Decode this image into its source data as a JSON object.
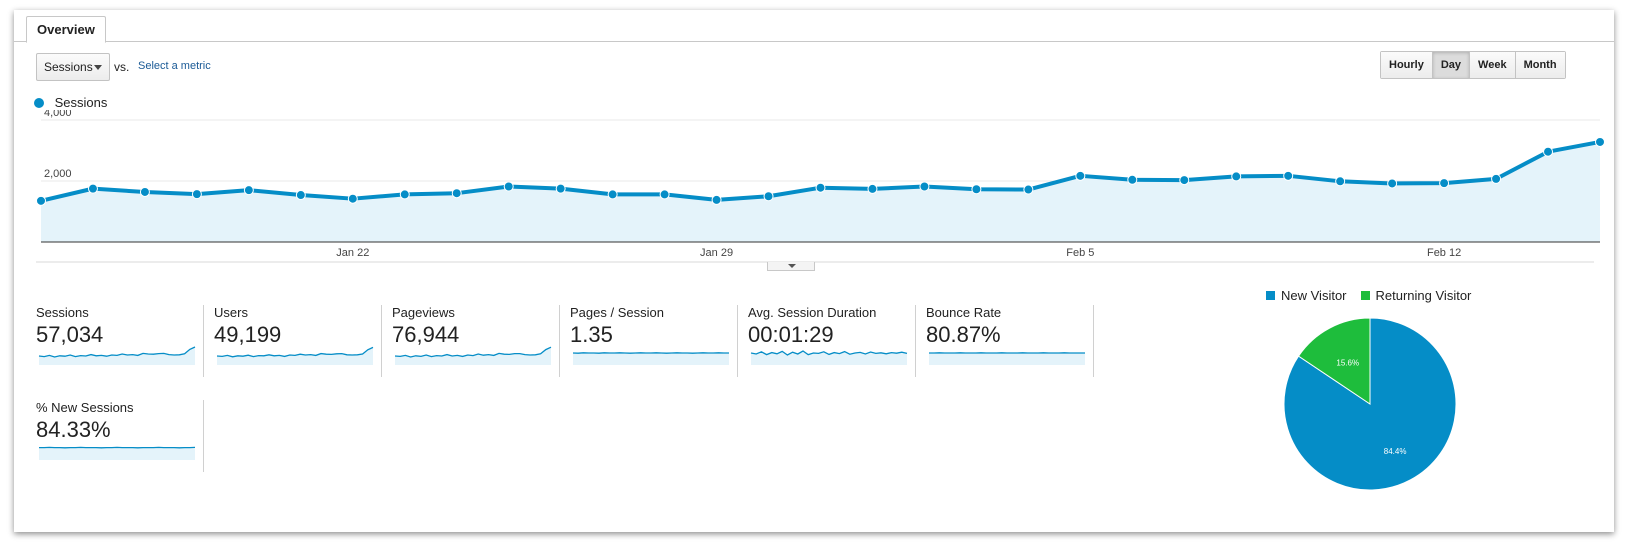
{
  "tab": {
    "label": "Overview"
  },
  "toolbar": {
    "metric_select": "Sessions",
    "vs_label": "vs.",
    "select_metric_link": "Select a metric",
    "granularity": [
      "Hourly",
      "Day",
      "Week",
      "Month"
    ],
    "granularity_active": "Day"
  },
  "chart_data": {
    "type": "area",
    "series": [
      {
        "name": "Sessions",
        "color": "#058dc7",
        "values": [
          1350,
          1750,
          1640,
          1570,
          1700,
          1540,
          1420,
          1560,
          1600,
          1820,
          1750,
          1560,
          1560,
          1380,
          1500,
          1780,
          1740,
          1820,
          1730,
          1720,
          2170,
          2040,
          2030,
          2150,
          2170,
          1990,
          1920,
          1930,
          2070,
          2960,
          3280
        ]
      }
    ],
    "x_tick_labels": [
      "Jan 22",
      "Jan 29",
      "Feb 5",
      "Feb 12"
    ],
    "x_tick_indices": [
      6,
      13,
      20,
      27
    ],
    "y_tick_labels": [
      "4,000",
      "2,000"
    ],
    "y_ticks": [
      4000,
      2000
    ],
    "ylim": [
      0,
      4000
    ]
  },
  "metrics": [
    {
      "label": "Sessions",
      "value": "57,034",
      "spark": [
        0.45,
        0.42,
        0.48,
        0.4,
        0.46,
        0.44,
        0.5,
        0.42,
        0.47,
        0.45,
        0.52,
        0.46,
        0.48,
        0.44,
        0.5,
        0.48,
        0.55,
        0.5,
        0.52,
        0.48,
        0.58,
        0.55,
        0.54,
        0.57,
        0.58,
        0.52,
        0.5,
        0.51,
        0.56,
        0.78,
        0.9
      ]
    },
    {
      "label": "Users",
      "value": "49,199",
      "spark": [
        0.45,
        0.43,
        0.48,
        0.41,
        0.46,
        0.44,
        0.49,
        0.42,
        0.47,
        0.46,
        0.51,
        0.46,
        0.48,
        0.43,
        0.5,
        0.48,
        0.54,
        0.5,
        0.52,
        0.48,
        0.57,
        0.54,
        0.53,
        0.56,
        0.57,
        0.51,
        0.5,
        0.51,
        0.55,
        0.76,
        0.88
      ]
    },
    {
      "label": "Pageviews",
      "value": "76,944",
      "spark": [
        0.45,
        0.43,
        0.48,
        0.4,
        0.46,
        0.43,
        0.5,
        0.42,
        0.47,
        0.45,
        0.52,
        0.45,
        0.48,
        0.43,
        0.5,
        0.47,
        0.55,
        0.49,
        0.52,
        0.48,
        0.58,
        0.54,
        0.53,
        0.57,
        0.57,
        0.52,
        0.5,
        0.51,
        0.56,
        0.77,
        0.89
      ]
    },
    {
      "label": "Pages / Session",
      "value": "1.35",
      "spark": [
        0.6,
        0.59,
        0.61,
        0.6,
        0.6,
        0.59,
        0.61,
        0.6,
        0.6,
        0.61,
        0.6,
        0.59,
        0.6,
        0.61,
        0.6,
        0.6,
        0.61,
        0.6,
        0.59,
        0.6,
        0.61,
        0.6,
        0.6,
        0.59,
        0.6,
        0.61,
        0.6,
        0.6,
        0.61,
        0.6,
        0.6
      ]
    },
    {
      "label": "Avg. Session Duration",
      "value": "00:01:29",
      "spark": [
        0.6,
        0.55,
        0.66,
        0.52,
        0.62,
        0.56,
        0.68,
        0.5,
        0.64,
        0.55,
        0.7,
        0.52,
        0.6,
        0.58,
        0.66,
        0.53,
        0.62,
        0.57,
        0.67,
        0.54,
        0.6,
        0.63,
        0.55,
        0.65,
        0.58,
        0.61,
        0.56,
        0.62,
        0.59,
        0.64,
        0.58
      ]
    },
    {
      "label": "Bounce Rate",
      "value": "80.87%",
      "spark": [
        0.6,
        0.6,
        0.61,
        0.6,
        0.6,
        0.6,
        0.61,
        0.6,
        0.6,
        0.6,
        0.61,
        0.6,
        0.6,
        0.6,
        0.61,
        0.6,
        0.6,
        0.6,
        0.61,
        0.6,
        0.6,
        0.6,
        0.61,
        0.6,
        0.6,
        0.6,
        0.61,
        0.6,
        0.6,
        0.6,
        0.6
      ]
    },
    {
      "label": "% New Sessions",
      "value": "84.33%",
      "spark": [
        0.62,
        0.62,
        0.63,
        0.62,
        0.62,
        0.61,
        0.62,
        0.62,
        0.63,
        0.62,
        0.62,
        0.62,
        0.61,
        0.62,
        0.62,
        0.63,
        0.62,
        0.62,
        0.62,
        0.61,
        0.62,
        0.62,
        0.62,
        0.63,
        0.62,
        0.62,
        0.62,
        0.61,
        0.62,
        0.62,
        0.63
      ]
    }
  ],
  "pie": {
    "type": "pie",
    "slices": [
      {
        "name": "New Visitor",
        "value": 84.4,
        "label": "84.4%",
        "color": "#058dc7"
      },
      {
        "name": "Returning Visitor",
        "value": 15.6,
        "label": "15.6%",
        "color": "#1ebd3c"
      }
    ]
  }
}
